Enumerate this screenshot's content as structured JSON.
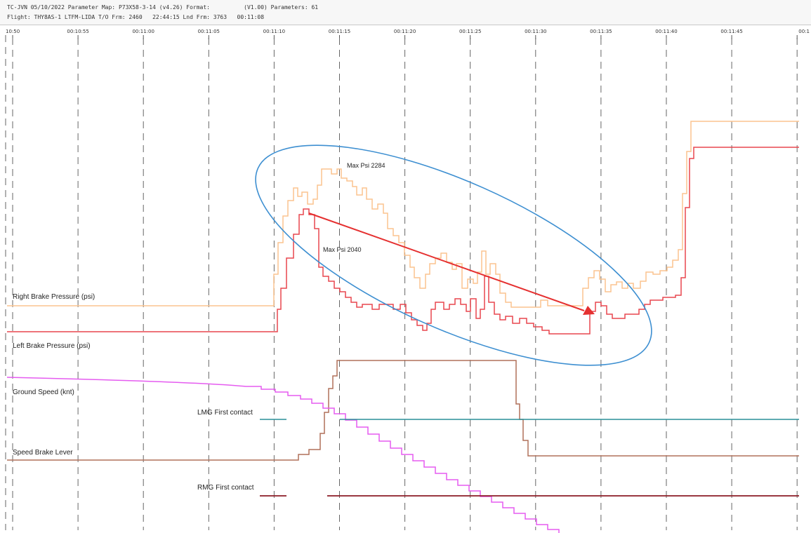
{
  "header": {
    "line1": "TC-JVN 05/10/2022 Parameter Map: P73X58-3-14 (v4.26) Format:          (V1.00) Parameters: 61",
    "line2": "Flight: THY8AS-1 LTFM-LIDA T/O Frm: 2460   22:44:15 Lnd Frm: 3763   00:11:08"
  },
  "chart_data": {
    "type": "line",
    "x_ticks": [
      "10:50",
      "00:10:55",
      "00:11:00",
      "00:11:05",
      "00:11:10",
      "00:11:15",
      "00:11:20",
      "00:11:25",
      "00:11:30",
      "00:11:35",
      "00:11:40",
      "00:11:45",
      "00:1"
    ],
    "grid": "vertical dashed",
    "colors": {
      "right_brake": "#fbc48f",
      "left_brake": "#e8474f",
      "ground_speed": "#e55cf0",
      "lmg": "#2a8f98",
      "speed_brake": "#b0705a",
      "rmg": "#8c1c24",
      "ellipse": "#3d8fd1",
      "arrow": "#e53030"
    },
    "series": [
      {
        "name": "Right Brake Pressure (psi)"
      },
      {
        "name": "Left Brake Pressure (psi)"
      },
      {
        "name": "Ground Speed (knt)"
      },
      {
        "name": "LMG First contact"
      },
      {
        "name": "Speed Brake Lever"
      },
      {
        "name": "RMG First contact"
      }
    ],
    "annotations": {
      "max_right": "Max Psi 2284",
      "max_left": "Max Psi 2040"
    }
  }
}
